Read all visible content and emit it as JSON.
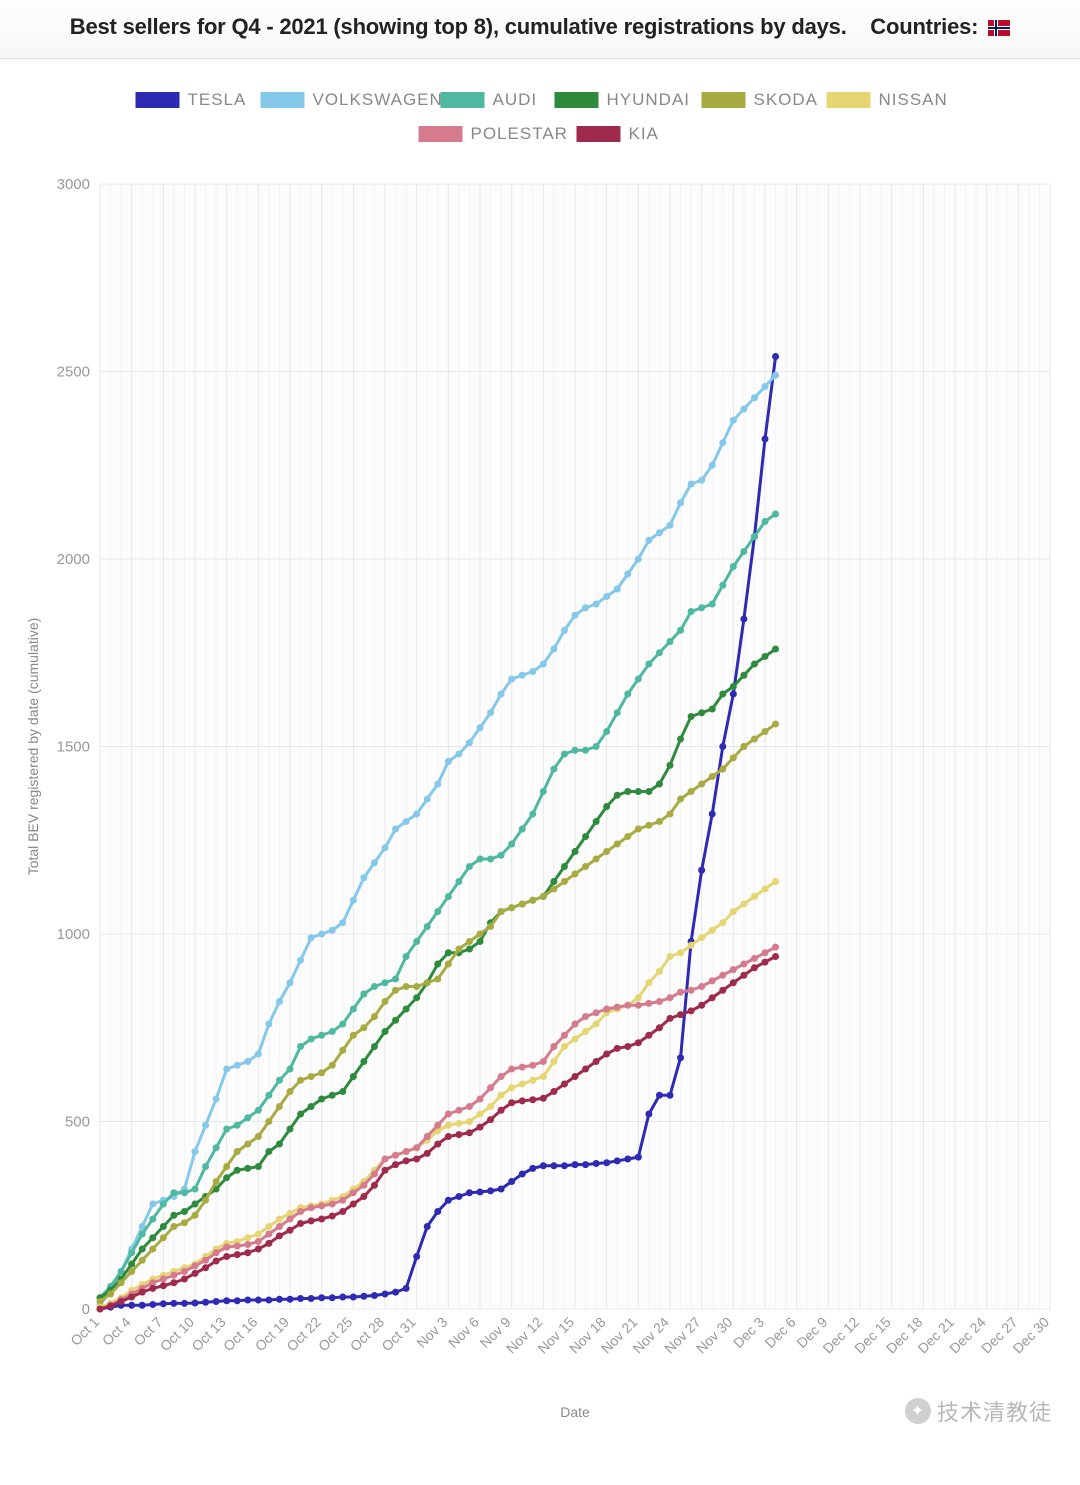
{
  "header": {
    "title_prefix": "Best sellers for Q4 - 2021 (showing top 8), cumulative registrations by days.",
    "countries_label": "Countries:",
    "flag_name": "norway-flag"
  },
  "watermark": {
    "text": "技术清教徒",
    "icon": "wechat-icon"
  },
  "chart": {
    "type": "line",
    "background_color": "#ffffff",
    "plot_background_color": "#fcfcfc",
    "grid_color_major": "#e8e8e8",
    "grid_color_minor": "#f3f3f3",
    "axis_text_color": "#999999",
    "label_fontsize": 14,
    "title_fontsize": 22,
    "line_width": 3,
    "marker_radius": 3.5,
    "x_axis": {
      "title": "Date",
      "tick_labels": [
        "Oct 1",
        "Oct 4",
        "Oct 7",
        "Oct 10",
        "Oct 13",
        "Oct 16",
        "Oct 19",
        "Oct 22",
        "Oct 25",
        "Oct 28",
        "Oct 31",
        "Nov 3",
        "Nov 6",
        "Nov 9",
        "Nov 12",
        "Nov 15",
        "Nov 18",
        "Nov 21",
        "Nov 24",
        "Nov 27",
        "Nov 30",
        "Dec 3",
        "Dec 6",
        "Dec 9",
        "Dec 12",
        "Dec 15",
        "Dec 18",
        "Dec 21",
        "Dec 24",
        "Dec 27",
        "Dec 30"
      ],
      "tick_step_days": 3,
      "total_days": 91
    },
    "y_axis": {
      "title": "Total BEV registered by date (cumulative)",
      "min": 0,
      "max": 3000,
      "tick_step": 500
    },
    "legend": {
      "swatch_width": 44,
      "swatch_height": 16,
      "font_size": 17
    },
    "series": [
      {
        "name": "TESLA",
        "color": "#2e2ab3",
        "data": [
          0,
          5,
          10,
          10,
          10,
          12,
          14,
          15,
          15,
          16,
          18,
          20,
          22,
          22,
          24,
          24,
          24,
          26,
          26,
          28,
          28,
          30,
          30,
          32,
          32,
          34,
          36,
          40,
          45,
          55,
          140,
          220,
          260,
          290,
          300,
          310,
          312,
          315,
          320,
          340,
          360,
          375,
          382,
          382,
          382,
          385,
          385,
          388,
          390,
          395,
          400,
          405,
          520,
          570,
          570,
          670,
          980,
          1170,
          1320,
          1500,
          1640,
          1840,
          2060,
          2320,
          2540
        ]
      },
      {
        "name": "VOLKSWAGEN",
        "color": "#84c8ea",
        "data": [
          10,
          50,
          100,
          160,
          220,
          280,
          290,
          300,
          320,
          420,
          490,
          560,
          640,
          650,
          660,
          680,
          760,
          820,
          870,
          930,
          990,
          1000,
          1010,
          1030,
          1090,
          1150,
          1190,
          1230,
          1280,
          1300,
          1320,
          1360,
          1400,
          1460,
          1480,
          1510,
          1550,
          1590,
          1640,
          1680,
          1690,
          1700,
          1720,
          1760,
          1810,
          1850,
          1870,
          1880,
          1900,
          1920,
          1960,
          2000,
          2050,
          2070,
          2090,
          2150,
          2200,
          2210,
          2250,
          2310,
          2370,
          2400,
          2430,
          2460,
          2490
        ]
      },
      {
        "name": "AUDI",
        "color": "#4fb8a0",
        "data": [
          30,
          60,
          100,
          150,
          200,
          240,
          280,
          310,
          310,
          320,
          380,
          430,
          480,
          490,
          510,
          530,
          570,
          610,
          640,
          700,
          720,
          730,
          740,
          760,
          800,
          840,
          860,
          870,
          880,
          940,
          980,
          1020,
          1060,
          1100,
          1140,
          1180,
          1200,
          1200,
          1210,
          1240,
          1280,
          1320,
          1380,
          1440,
          1480,
          1490,
          1490,
          1500,
          1540,
          1590,
          1640,
          1680,
          1720,
          1750,
          1780,
          1810,
          1860,
          1870,
          1880,
          1930,
          1980,
          2020,
          2060,
          2100,
          2120
        ]
      },
      {
        "name": "HYUNDAI",
        "color": "#2e8b3e",
        "data": [
          30,
          50,
          80,
          120,
          160,
          190,
          220,
          250,
          260,
          280,
          300,
          320,
          350,
          370,
          375,
          380,
          420,
          440,
          480,
          520,
          540,
          560,
          570,
          580,
          620,
          660,
          700,
          740,
          770,
          800,
          830,
          870,
          920,
          950,
          950,
          960,
          980,
          1030,
          1060,
          1070,
          1080,
          1090,
          1100,
          1140,
          1180,
          1220,
          1260,
          1300,
          1340,
          1370,
          1380,
          1380,
          1380,
          1400,
          1450,
          1520,
          1580,
          1590,
          1600,
          1640,
          1660,
          1690,
          1720,
          1740,
          1760
        ]
      },
      {
        "name": "SKODA",
        "color": "#a8ab42",
        "data": [
          20,
          40,
          70,
          100,
          130,
          160,
          190,
          220,
          230,
          250,
          290,
          340,
          380,
          420,
          440,
          460,
          500,
          540,
          580,
          610,
          620,
          630,
          650,
          690,
          730,
          750,
          780,
          820,
          850,
          860,
          860,
          870,
          880,
          920,
          960,
          980,
          1000,
          1020,
          1060,
          1070,
          1080,
          1090,
          1100,
          1120,
          1140,
          1160,
          1180,
          1200,
          1220,
          1240,
          1260,
          1280,
          1290,
          1300,
          1320,
          1360,
          1380,
          1400,
          1420,
          1440,
          1470,
          1500,
          1520,
          1540,
          1560
        ]
      },
      {
        "name": "NISSAN",
        "color": "#e6d673",
        "data": [
          5,
          15,
          30,
          50,
          65,
          80,
          90,
          100,
          110,
          120,
          140,
          160,
          175,
          180,
          190,
          200,
          220,
          240,
          255,
          270,
          275,
          280,
          290,
          300,
          320,
          340,
          370,
          400,
          410,
          420,
          430,
          450,
          475,
          490,
          495,
          500,
          520,
          540,
          570,
          590,
          600,
          610,
          620,
          660,
          700,
          720,
          740,
          760,
          790,
          800,
          810,
          830,
          870,
          900,
          940,
          950,
          970,
          990,
          1010,
          1030,
          1060,
          1080,
          1100,
          1120,
          1140
        ]
      },
      {
        "name": "POLESTAR",
        "color": "#d67a8d",
        "data": [
          0,
          10,
          25,
          40,
          55,
          70,
          80,
          90,
          100,
          115,
          130,
          150,
          165,
          168,
          172,
          180,
          200,
          220,
          240,
          260,
          270,
          275,
          280,
          290,
          310,
          330,
          360,
          400,
          410,
          420,
          430,
          460,
          490,
          520,
          530,
          540,
          560,
          590,
          620,
          640,
          645,
          650,
          660,
          700,
          730,
          760,
          780,
          790,
          800,
          805,
          810,
          810,
          815,
          820,
          830,
          845,
          850,
          860,
          875,
          890,
          905,
          920,
          935,
          950,
          965
        ]
      },
      {
        "name": "KIA",
        "color": "#9e2b4c",
        "data": [
          0,
          8,
          20,
          32,
          45,
          55,
          62,
          70,
          80,
          95,
          110,
          128,
          140,
          145,
          150,
          160,
          175,
          195,
          210,
          228,
          235,
          240,
          248,
          260,
          280,
          300,
          330,
          370,
          385,
          395,
          400,
          415,
          440,
          460,
          465,
          470,
          485,
          505,
          530,
          550,
          555,
          558,
          562,
          580,
          600,
          620,
          640,
          660,
          680,
          695,
          700,
          710,
          730,
          750,
          775,
          785,
          795,
          810,
          830,
          850,
          870,
          890,
          910,
          925,
          940
        ]
      }
    ]
  }
}
